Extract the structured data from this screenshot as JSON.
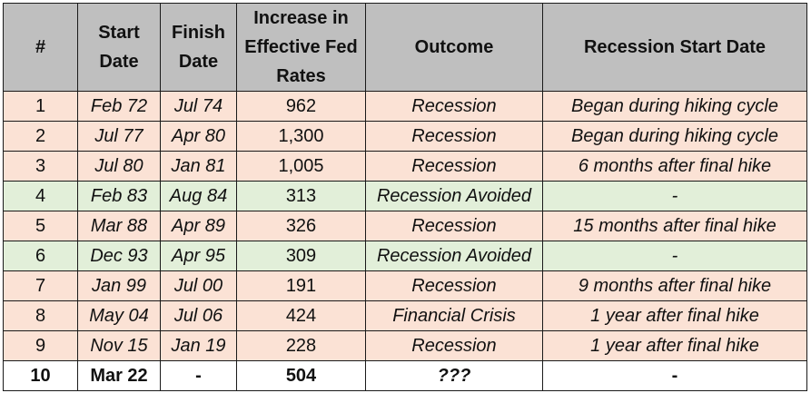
{
  "headers": [
    "#",
    "Start Date",
    "Finish Date",
    "Increase in Effective Fed Rates",
    "Outcome",
    "Recession Start Date"
  ],
  "rows": [
    {
      "num": "1",
      "start": "Feb 72",
      "finish": "Jul 74",
      "increase": "962",
      "outcome": "Recession",
      "recession_start": "Began during hiking cycle",
      "type": "rec"
    },
    {
      "num": "2",
      "start": "Jul 77",
      "finish": "Apr 80",
      "increase": "1,300",
      "outcome": "Recession",
      "recession_start": "Began during hiking cycle",
      "type": "rec"
    },
    {
      "num": "3",
      "start": "Jul 80",
      "finish": "Jan 81",
      "increase": "1,005",
      "outcome": "Recession",
      "recession_start": "6 months after final hike",
      "type": "rec"
    },
    {
      "num": "4",
      "start": "Feb 83",
      "finish": "Aug 84",
      "increase": "313",
      "outcome": "Recession Avoided",
      "recession_start": "-",
      "type": "avoid"
    },
    {
      "num": "5",
      "start": "Mar 88",
      "finish": "Apr 89",
      "increase": "326",
      "outcome": "Recession",
      "recession_start": "15 months after final hike",
      "type": "rec"
    },
    {
      "num": "6",
      "start": "Dec 93",
      "finish": "Apr 95",
      "increase": "309",
      "outcome": "Recession Avoided",
      "recession_start": "-",
      "type": "avoid"
    },
    {
      "num": "7",
      "start": "Jan 99",
      "finish": "Jul 00",
      "increase": "191",
      "outcome": "Recession",
      "recession_start": "9 months after final hike",
      "type": "rec"
    },
    {
      "num": "8",
      "start": "May 04",
      "finish": "Jul 06",
      "increase": "424",
      "outcome": "Financial Crisis",
      "recession_start": "1 year after final hike",
      "type": "rec"
    },
    {
      "num": "9",
      "start": "Nov 15",
      "finish": "Jan 19",
      "increase": "228",
      "outcome": "Recession",
      "recession_start": "1 year after final hike",
      "type": "rec"
    },
    {
      "num": "10",
      "start": "Mar 22",
      "finish": "-",
      "increase": "504",
      "outcome": "???",
      "recession_start": "-",
      "type": "current"
    }
  ],
  "colors": {
    "recession_row": "#fbe2d5",
    "avoided_row": "#e2efd9",
    "header": "#bfbfbf",
    "current_row": "#ffffff"
  }
}
